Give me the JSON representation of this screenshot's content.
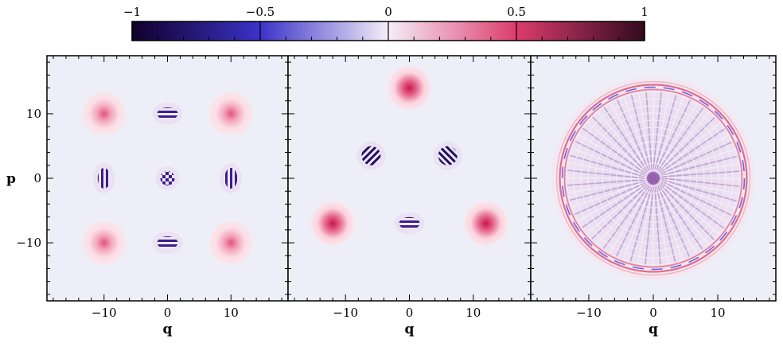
{
  "chart_data": {
    "type": "heatmap",
    "colorbar": {
      "range": [
        -1,
        1
      ],
      "ticks": [
        -1,
        -0.5,
        0,
        0.5,
        1
      ],
      "tick_labels": [
        "−1",
        "−0.5",
        "0",
        "0.5",
        "1"
      ],
      "colors": {
        "negative_end": "#10002a",
        "negative_mid": "#3b32c8",
        "zero": "#f4eef8",
        "positive_mid": "#dc3c6e",
        "positive_end": "#320a1e"
      },
      "placement": "top"
    },
    "shared_axes": {
      "xlabel": "q",
      "ylabel": "p",
      "xlim": [
        -19,
        19
      ],
      "ylim": [
        -19,
        19
      ],
      "x_ticks": [
        -10,
        0,
        10
      ],
      "x_tick_labels": [
        "−10",
        "0",
        "10"
      ],
      "y_ticks": [
        -10,
        0,
        10
      ],
      "y_tick_labels": [
        "−10",
        "0",
        "10"
      ],
      "background_color": "#eeeef8"
    },
    "panels": [
      {
        "blobs": [
          {
            "q": -10,
            "p": 10,
            "value": 0.45,
            "kind": "peak"
          },
          {
            "q": 10,
            "p": 10,
            "value": 0.45,
            "kind": "peak"
          },
          {
            "q": -10,
            "p": -10,
            "value": 0.45,
            "kind": "peak"
          },
          {
            "q": 10,
            "p": -10,
            "value": 0.45,
            "kind": "peak"
          },
          {
            "q": 0,
            "p": 10,
            "value": -0.8,
            "kind": "fringe-horizontal"
          },
          {
            "q": 0,
            "p": -10,
            "value": -0.8,
            "kind": "fringe-horizontal"
          },
          {
            "q": -10,
            "p": 0,
            "value": -0.8,
            "kind": "fringe-vertical"
          },
          {
            "q": 10,
            "p": 0,
            "value": -0.8,
            "kind": "fringe-vertical"
          },
          {
            "q": 0,
            "p": 0,
            "value": -0.85,
            "kind": "checker"
          }
        ]
      },
      {
        "blobs": [
          {
            "q": 0,
            "p": 14,
            "value": 0.9,
            "kind": "peak"
          },
          {
            "q": -12,
            "p": -7,
            "value": 0.9,
            "kind": "peak"
          },
          {
            "q": 12,
            "p": -7,
            "value": 0.9,
            "kind": "peak"
          },
          {
            "q": -6,
            "p": 3.5,
            "value": -0.9,
            "kind": "fringe-diagonal-right"
          },
          {
            "q": 6,
            "p": 3.5,
            "value": -0.9,
            "kind": "fringe-diagonal-left"
          },
          {
            "q": 0,
            "p": -7,
            "value": -0.9,
            "kind": "fringe-horizontal"
          }
        ]
      },
      {
        "ring": {
          "center_q": 0,
          "center_p": 0,
          "radius": 14,
          "inner_pattern": "interference",
          "value_range": [
            -0.5,
            0.5
          ]
        }
      }
    ]
  }
}
